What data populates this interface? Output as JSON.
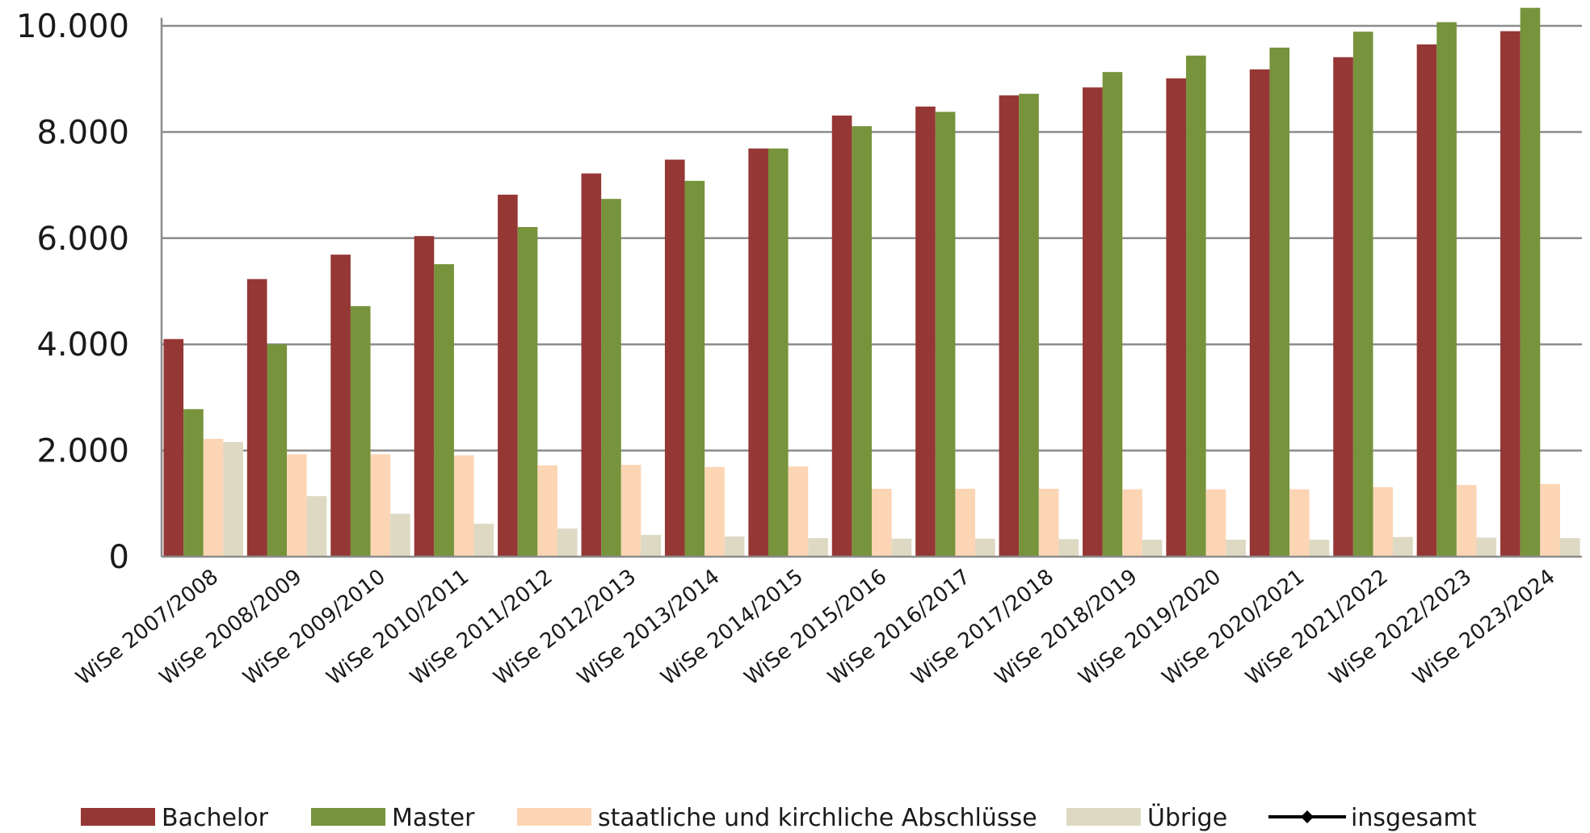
{
  "chart_data": {
    "type": "bar",
    "title": "",
    "xlabel": "",
    "ylabel": "",
    "ylim": [
      0,
      10000
    ],
    "yticks": [
      0,
      2000,
      4000,
      6000,
      8000,
      10000
    ],
    "ytick_labels": [
      "0",
      "2.000",
      "4.000",
      "6.000",
      "8.000",
      "10.000"
    ],
    "grid": true,
    "legend_position": "bottom",
    "categories": [
      "WiSe 2007/2008",
      "WiSe 2008/2009",
      "WiSe 2009/2010",
      "WiSe 2010/2011",
      "WiSe 2011/2012",
      "WiSe 2012/2013",
      "WiSe 2013/2014",
      "WiSe 2014/2015",
      "WiSe 2015/2016",
      "WiSe 2016/2017",
      "WiSe 2017/2018",
      "WiSe 2018/2019",
      "WiSe 2019/2020",
      "WiSe 2020/2021",
      "WiSe 2021/2022",
      "WiSe 2022/2023",
      "WiSe 2023/2024"
    ],
    "series": [
      {
        "name": "Bachelor",
        "color": "#953735",
        "values": [
          4100,
          5230,
          5690,
          6040,
          6820,
          7220,
          7480,
          7690,
          8310,
          8480,
          8690,
          8840,
          9010,
          9180,
          9410,
          9650,
          9900
        ]
      },
      {
        "name": "Master",
        "color": "#77933c",
        "values": [
          2780,
          4000,
          4720,
          5510,
          6210,
          6740,
          7080,
          7690,
          8110,
          8380,
          8720,
          9130,
          9440,
          9590,
          9890,
          10070,
          10340
        ]
      },
      {
        "name": "staatliche und kirchliche Abschlüsse",
        "color": "#fcd5b5",
        "values": [
          2220,
          1930,
          1930,
          1910,
          1720,
          1730,
          1690,
          1700,
          1280,
          1280,
          1280,
          1270,
          1270,
          1270,
          1310,
          1350,
          1370
        ]
      },
      {
        "name": "Übrige",
        "color": "#ddd9c3",
        "values": [
          2160,
          1140,
          810,
          620,
          530,
          410,
          380,
          350,
          340,
          340,
          330,
          320,
          320,
          320,
          370,
          360,
          350
        ]
      }
    ],
    "legend": [
      {
        "name": "Bachelor",
        "color": "#953735",
        "symbol": "bar"
      },
      {
        "name": "Master",
        "color": "#77933c",
        "symbol": "bar"
      },
      {
        "name": "staatliche und kirchliche Abschlüsse",
        "color": "#fcd5b5",
        "symbol": "bar"
      },
      {
        "name": "Übrige",
        "color": "#ddd9c3",
        "symbol": "bar"
      },
      {
        "name": "insgesamt",
        "color": "#000000",
        "symbol": "line"
      }
    ]
  }
}
